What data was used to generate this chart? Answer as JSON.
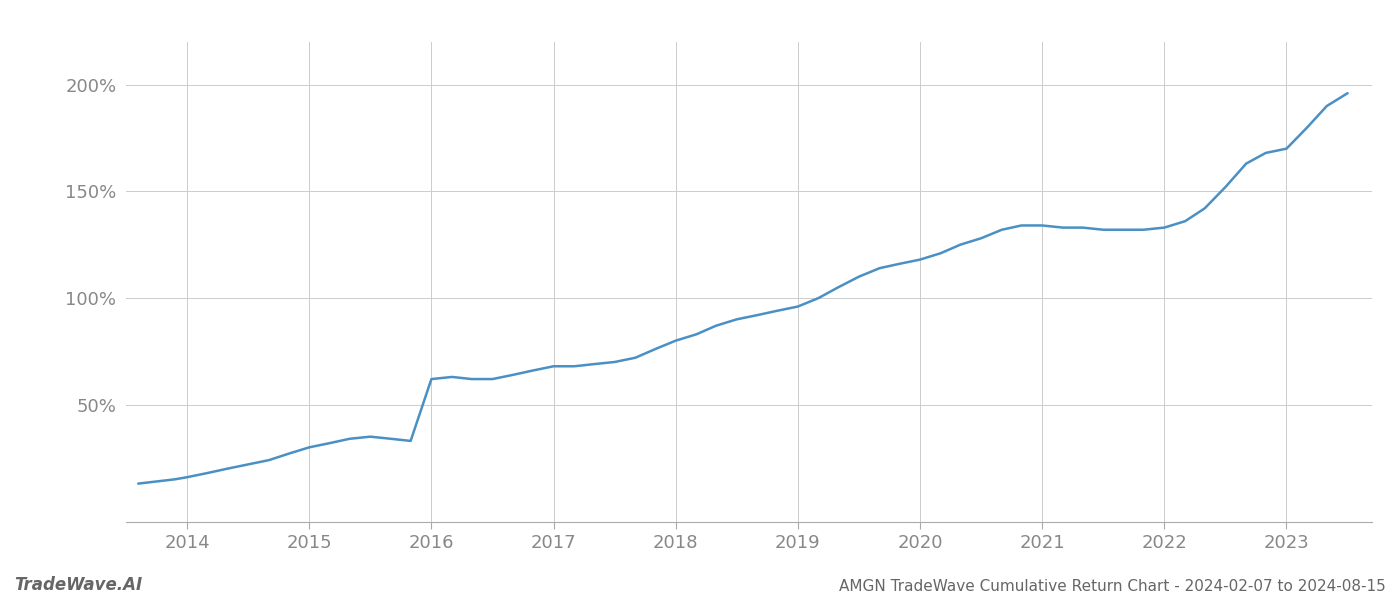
{
  "title": "AMGN TradeWave Cumulative Return Chart - 2024-02-07 to 2024-08-15",
  "watermark": "TradeWave.AI",
  "line_color": "#4a90c4",
  "background_color": "#ffffff",
  "grid_color": "#cccccc",
  "x_years": [
    2014,
    2015,
    2016,
    2017,
    2018,
    2019,
    2020,
    2021,
    2022,
    2023
  ],
  "x_values": [
    2013.6,
    2013.75,
    2013.9,
    2014.0,
    2014.17,
    2014.33,
    2014.5,
    2014.67,
    2014.83,
    2015.0,
    2015.17,
    2015.33,
    2015.5,
    2015.67,
    2015.83,
    2016.0,
    2016.17,
    2016.33,
    2016.5,
    2016.67,
    2016.83,
    2017.0,
    2017.17,
    2017.33,
    2017.5,
    2017.67,
    2017.83,
    2018.0,
    2018.17,
    2018.33,
    2018.5,
    2018.67,
    2018.83,
    2019.0,
    2019.17,
    2019.33,
    2019.5,
    2019.67,
    2019.83,
    2020.0,
    2020.17,
    2020.33,
    2020.5,
    2020.67,
    2020.83,
    2021.0,
    2021.17,
    2021.33,
    2021.5,
    2021.67,
    2021.83,
    2022.0,
    2022.17,
    2022.33,
    2022.5,
    2022.67,
    2022.83,
    2023.0,
    2023.17,
    2023.33,
    2023.5
  ],
  "y_values": [
    13,
    14,
    15,
    16,
    18,
    20,
    22,
    24,
    27,
    30,
    32,
    34,
    35,
    34,
    33,
    62,
    63,
    62,
    62,
    64,
    66,
    68,
    68,
    69,
    70,
    72,
    76,
    80,
    83,
    87,
    90,
    92,
    94,
    96,
    100,
    105,
    110,
    114,
    116,
    118,
    121,
    125,
    128,
    132,
    134,
    134,
    133,
    133,
    132,
    132,
    132,
    133,
    136,
    142,
    152,
    163,
    168,
    170,
    180,
    190,
    196
  ],
  "yticks": [
    50,
    100,
    150,
    200
  ],
  "ylim": [
    -5,
    220
  ],
  "xlim": [
    2013.5,
    2023.7
  ],
  "title_fontsize": 11,
  "tick_fontsize": 13,
  "watermark_fontsize": 12,
  "line_width": 1.8
}
